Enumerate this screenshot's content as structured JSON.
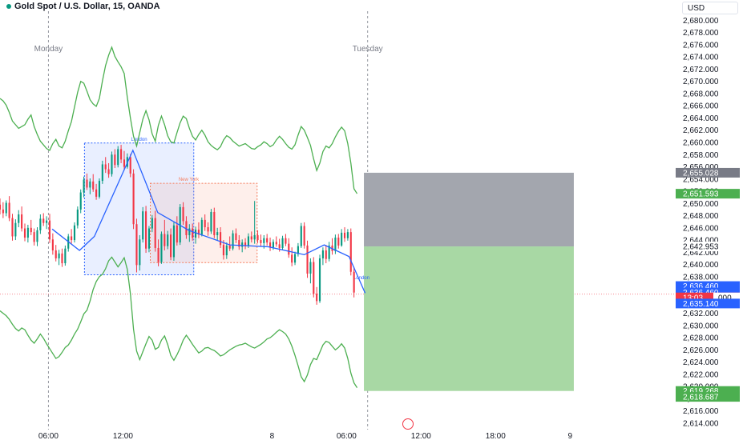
{
  "title": "Gold Spot / U.S. Dollar, 15, OANDA",
  "currency": "USD",
  "colors": {
    "up": "#089981",
    "down": "#f23645",
    "band": "#4caf50",
    "ma": "#2962ff",
    "london_box": "#2962ff",
    "ny_box": "#f57c5c",
    "stop_zone": "#a3a6ae",
    "target_zone": "#a8d8a4"
  },
  "icons": {
    "replay": "replay-icon"
  },
  "chart_data": {
    "type": "candlestick",
    "title": "Gold Spot / U.S. Dollar, 15, OANDA",
    "ylim": [
      2613.2,
      2681.5
    ],
    "y_ticks": [
      "2,614.000",
      "2,616.000",
      "2,618.000",
      "2,620.000",
      "2,622.000",
      "2,624.000",
      "2,626.000",
      "2,628.000",
      "2,630.000",
      "2,632.000",
      "2,634.000",
      "2,636.000",
      "2,638.000",
      "2,640.000",
      "2,642.000",
      "2,644.000",
      "2,646.000",
      "2,648.000",
      "2,650.000",
      "2,652.000",
      "2,654.000",
      "2,656.000",
      "2,658.000",
      "2,660.000",
      "2,662.000",
      "2,664.000",
      "2,666.000",
      "2,668.000",
      "2,670.000",
      "2,672.000",
      "2,674.000",
      "2,676.000",
      "2,678.000",
      "2,680.000"
    ],
    "x_ticks": [
      {
        "label": "06:00",
        "t": 6
      },
      {
        "label": "12:00",
        "t": 12
      },
      {
        "label": "8",
        "t": 24
      },
      {
        "label": "06:00",
        "t": 30
      },
      {
        "label": "12:00",
        "t": 36
      },
      {
        "label": "18:00",
        "t": 42
      },
      {
        "label": "9",
        "t": 48
      }
    ],
    "x_range_hours": [
      2.1,
      56.5
    ],
    "day_labels": [
      {
        "label": "Monday",
        "t": 2.1
      },
      {
        "label": "Tuesday",
        "t": 27.8
      }
    ],
    "sessions": [
      {
        "label": "London",
        "t_start": 8.9,
        "t_end": 17.7,
        "high": 2659.9,
        "low": 2638.3
      },
      {
        "label": "New York",
        "t_start": 14.2,
        "t_end": 22.8,
        "high": 2653.3,
        "low": 2640.3
      }
    ],
    "session_label_last": {
      "label": "London",
      "t": 31.2,
      "price": 2637.6
    },
    "price_tags": [
      {
        "label": "2,655.028",
        "price": 2655.028,
        "color": "#787b86"
      },
      {
        "label": "2,651.593",
        "price": 2651.593,
        "color": "#4caf50"
      },
      {
        "label": "2,636.460",
        "price": 2636.46,
        "color": "#2962ff"
      },
      {
        "label": "2,636.460",
        "price": 2635.4,
        "color": "#2962ff"
      },
      {
        "label": "13:03",
        "price": 2634.6,
        "color": "#f23645",
        "extra": "000"
      },
      {
        "label": "2,635.140",
        "price": 2633.6,
        "color": "#2962ff"
      },
      {
        "label": "2,619.268",
        "price": 2619.268,
        "color": "#4caf50"
      },
      {
        "label": "2,618.687",
        "price": 2618.3,
        "color": "#4caf50"
      }
    ],
    "plain_tags": [
      {
        "label": "2,642.953",
        "price": 2642.953
      }
    ],
    "position": {
      "t_start": 31.4,
      "t_end": 48.3,
      "entry": 2642.953,
      "stop": 2655.028,
      "target": 2619.268
    },
    "ohlc": [
      [
        2649.8,
        2650.8,
        2648.2,
        2649.0
      ],
      [
        2649.0,
        2650.2,
        2647.6,
        2648.4
      ],
      [
        2648.4,
        2650.5,
        2647.9,
        2650.1
      ],
      [
        2650.1,
        2651.2,
        2647.1,
        2647.6
      ],
      [
        2647.6,
        2648.3,
        2643.9,
        2644.6
      ],
      [
        2644.6,
        2647.4,
        2644.0,
        2646.8
      ],
      [
        2646.8,
        2648.9,
        2646.1,
        2648.2
      ],
      [
        2648.2,
        2649.5,
        2645.4,
        2645.9
      ],
      [
        2645.9,
        2646.7,
        2643.8,
        2644.4
      ],
      [
        2644.4,
        2646.5,
        2643.6,
        2646.0
      ],
      [
        2646.0,
        2647.3,
        2644.8,
        2645.3
      ],
      [
        2645.3,
        2645.9,
        2643.1,
        2643.7
      ],
      [
        2643.7,
        2646.1,
        2643.0,
        2645.6
      ],
      [
        2645.6,
        2648.2,
        2645.0,
        2647.5
      ],
      [
        2647.5,
        2648.4,
        2646.3,
        2646.8
      ],
      [
        2646.8,
        2647.9,
        2645.8,
        2647.2
      ],
      [
        2647.2,
        2648.3,
        2643.5,
        2644.1
      ],
      [
        2644.1,
        2645.1,
        2641.6,
        2642.3
      ],
      [
        2642.3,
        2643.2,
        2640.5,
        2641.0
      ],
      [
        2641.0,
        2642.4,
        2639.9,
        2641.8
      ],
      [
        2641.8,
        2642.6,
        2639.6,
        2640.2
      ],
      [
        2640.2,
        2643.1,
        2639.8,
        2642.6
      ],
      [
        2642.6,
        2645.0,
        2642.1,
        2644.6
      ],
      [
        2644.6,
        2645.8,
        2643.4,
        2644.0
      ],
      [
        2644.0,
        2646.9,
        2643.6,
        2646.4
      ],
      [
        2646.4,
        2649.5,
        2645.9,
        2649.0
      ],
      [
        2649.0,
        2652.3,
        2648.4,
        2651.8
      ],
      [
        2651.8,
        2654.4,
        2651.0,
        2653.9
      ],
      [
        2653.9,
        2654.9,
        2652.2,
        2652.6
      ],
      [
        2652.6,
        2654.1,
        2651.5,
        2653.6
      ],
      [
        2653.6,
        2654.8,
        2651.9,
        2652.3
      ],
      [
        2652.3,
        2653.2,
        2650.6,
        2651.1
      ],
      [
        2651.1,
        2654.1,
        2650.8,
        2653.7
      ],
      [
        2653.7,
        2657.0,
        2653.2,
        2656.4
      ],
      [
        2656.4,
        2657.6,
        2655.0,
        2655.6
      ],
      [
        2655.6,
        2656.6,
        2654.2,
        2654.8
      ],
      [
        2654.8,
        2658.5,
        2654.4,
        2658.0
      ],
      [
        2658.0,
        2658.9,
        2655.8,
        2656.3
      ],
      [
        2656.3,
        2659.4,
        2655.9,
        2658.9
      ],
      [
        2658.9,
        2659.6,
        2656.6,
        2657.2
      ],
      [
        2657.2,
        2658.6,
        2655.4,
        2656.0
      ],
      [
        2656.0,
        2658.2,
        2655.7,
        2657.6
      ],
      [
        2657.6,
        2658.1,
        2654.3,
        2654.9
      ],
      [
        2654.9,
        2655.6,
        2645.8,
        2646.6
      ],
      [
        2646.6,
        2647.5,
        2638.7,
        2639.9
      ],
      [
        2639.9,
        2644.8,
        2639.0,
        2644.1
      ],
      [
        2644.1,
        2649.4,
        2643.6,
        2648.7
      ],
      [
        2648.7,
        2649.6,
        2641.9,
        2642.6
      ],
      [
        2642.6,
        2646.3,
        2642.0,
        2645.9
      ],
      [
        2645.9,
        2648.1,
        2645.3,
        2647.6
      ],
      [
        2647.6,
        2648.8,
        2642.1,
        2642.7
      ],
      [
        2642.7,
        2644.1,
        2639.7,
        2640.4
      ],
      [
        2640.4,
        2645.4,
        2640.1,
        2645.0
      ],
      [
        2645.0,
        2647.3,
        2642.3,
        2643.0
      ],
      [
        2643.0,
        2645.5,
        2642.5,
        2644.9
      ],
      [
        2644.9,
        2645.9,
        2640.7,
        2641.2
      ],
      [
        2641.2,
        2646.9,
        2640.6,
        2646.4
      ],
      [
        2646.4,
        2647.9,
        2643.1,
        2643.6
      ],
      [
        2643.6,
        2649.9,
        2643.2,
        2649.4
      ],
      [
        2649.4,
        2650.2,
        2646.5,
        2647.1
      ],
      [
        2647.1,
        2647.9,
        2644.2,
        2644.8
      ],
      [
        2644.8,
        2646.6,
        2643.7,
        2645.9
      ],
      [
        2645.9,
        2646.7,
        2643.9,
        2644.4
      ],
      [
        2644.4,
        2646.2,
        2643.4,
        2645.7
      ],
      [
        2645.7,
        2646.9,
        2644.3,
        2644.9
      ],
      [
        2644.9,
        2647.7,
        2644.6,
        2647.3
      ],
      [
        2647.3,
        2648.2,
        2645.5,
        2646.1
      ],
      [
        2646.1,
        2646.9,
        2644.7,
        2645.4
      ],
      [
        2645.4,
        2649.1,
        2645.0,
        2648.6
      ],
      [
        2648.6,
        2649.3,
        2644.3,
        2644.8
      ],
      [
        2644.8,
        2646.0,
        2643.9,
        2645.3
      ],
      [
        2645.3,
        2646.1,
        2642.7,
        2643.2
      ],
      [
        2643.2,
        2644.0,
        2640.8,
        2641.5
      ],
      [
        2641.5,
        2643.6,
        2640.9,
        2643.1
      ],
      [
        2643.1,
        2644.6,
        2642.2,
        2642.6
      ],
      [
        2642.6,
        2645.6,
        2642.3,
        2645.1
      ],
      [
        2645.1,
        2645.9,
        2643.5,
        2644.0
      ],
      [
        2644.0,
        2644.8,
        2642.4,
        2642.9
      ],
      [
        2642.9,
        2644.1,
        2642.0,
        2643.6
      ],
      [
        2643.6,
        2644.3,
        2642.5,
        2643.0
      ],
      [
        2643.0,
        2645.1,
        2642.7,
        2644.6
      ],
      [
        2644.6,
        2645.4,
        2643.6,
        2644.1
      ],
      [
        2644.1,
        2650.4,
        2643.4,
        2644.8
      ],
      [
        2644.8,
        2645.6,
        2643.5,
        2644.0
      ],
      [
        2644.0,
        2644.9,
        2642.9,
        2643.5
      ],
      [
        2643.5,
        2644.8,
        2642.6,
        2644.3
      ],
      [
        2644.3,
        2645.0,
        2643.1,
        2643.6
      ],
      [
        2643.6,
        2644.4,
        2642.2,
        2642.8
      ],
      [
        2642.8,
        2644.1,
        2642.4,
        2643.7
      ],
      [
        2643.7,
        2644.6,
        2642.9,
        2643.3
      ],
      [
        2643.3,
        2644.2,
        2642.1,
        2642.7
      ],
      [
        2642.7,
        2644.7,
        2642.3,
        2644.3
      ],
      [
        2644.3,
        2645.0,
        2643.0,
        2643.4
      ],
      [
        2643.4,
        2644.3,
        2641.1,
        2641.6
      ],
      [
        2641.6,
        2642.8,
        2639.7,
        2640.3
      ],
      [
        2640.3,
        2642.1,
        2639.9,
        2641.7
      ],
      [
        2641.7,
        2643.5,
        2641.3,
        2643.0
      ],
      [
        2643.0,
        2646.8,
        2642.7,
        2646.3
      ],
      [
        2646.3,
        2646.9,
        2642.6,
        2643.1
      ],
      [
        2643.1,
        2643.9,
        2637.8,
        2638.5
      ],
      [
        2638.5,
        2641.0,
        2636.9,
        2640.4
      ],
      [
        2640.4,
        2641.2,
        2634.6,
        2635.2
      ],
      [
        2635.2,
        2636.3,
        2633.4,
        2634.0
      ],
      [
        2634.0,
        2641.6,
        2633.7,
        2641.0
      ],
      [
        2641.0,
        2642.8,
        2639.9,
        2642.3
      ],
      [
        2642.3,
        2643.2,
        2640.2,
        2640.9
      ],
      [
        2640.9,
        2643.7,
        2640.5,
        2643.1
      ],
      [
        2643.1,
        2644.3,
        2641.6,
        2642.2
      ],
      [
        2642.2,
        2644.9,
        2641.7,
        2644.4
      ],
      [
        2644.4,
        2645.0,
        2642.6,
        2643.1
      ],
      [
        2643.1,
        2645.8,
        2642.9,
        2645.2
      ],
      [
        2645.2,
        2646.1,
        2643.7,
        2644.3
      ],
      [
        2644.3,
        2645.8,
        2643.9,
        2645.3
      ],
      [
        2645.3,
        2645.9,
        2638.2,
        2638.8
      ],
      [
        2638.8,
        2639.6,
        2634.6,
        2635.4
      ]
    ],
    "bands": {
      "upper": [
        2667.2,
        2666.8,
        2666.1,
        2664.9,
        2663.5,
        2662.9,
        2662.3,
        2662.6,
        2662.9,
        2663.8,
        2664.5,
        2662.6,
        2661.3,
        2660.2,
        2659.6,
        2659.0,
        2658.7,
        2659.8,
        2660.5,
        2659.4,
        2659.1,
        2660.2,
        2661.9,
        2663.4,
        2665.8,
        2668.2,
        2670.0,
        2669.7,
        2668.4,
        2667.0,
        2666.3,
        2665.9,
        2667.2,
        2670.1,
        2672.6,
        2674.3,
        2675.6,
        2674.1,
        2673.2,
        2672.4,
        2671.3,
        2667.4,
        2664.0,
        2661.0,
        2659.4,
        2661.6,
        2663.8,
        2665.2,
        2663.7,
        2661.4,
        2660.2,
        2662.8,
        2664.3,
        2662.9,
        2661.1,
        2660.1,
        2659.9,
        2661.6,
        2663.2,
        2664.3,
        2663.9,
        2662.3,
        2661.0,
        2660.4,
        2661.3,
        2662.0,
        2661.2,
        2660.1,
        2659.5,
        2659.1,
        2658.8,
        2659.3,
        2660.4,
        2661.1,
        2660.8,
        2660.2,
        2659.8,
        2659.4,
        2659.6,
        2659.8,
        2659.4,
        2659.0,
        2658.9,
        2659.3,
        2659.6,
        2660.1,
        2659.8,
        2659.3,
        2659.6,
        2660.4,
        2661.0,
        2660.5,
        2659.8,
        2659.2,
        2658.9,
        2659.6,
        2661.2,
        2662.6,
        2662.0,
        2660.8,
        2659.5,
        2657.3,
        2655.4,
        2656.6,
        2658.5,
        2659.4,
        2659.1,
        2659.8,
        2660.9,
        2661.8,
        2662.5,
        2661.9,
        2659.8,
        2656.6,
        2652.4,
        2651.6
      ],
      "lower": [
        2632.4,
        2632.0,
        2631.6,
        2631.0,
        2630.2,
        2629.5,
        2629.1,
        2629.6,
        2629.3,
        2628.4,
        2627.6,
        2627.1,
        2627.8,
        2628.6,
        2627.9,
        2627.0,
        2626.2,
        2625.4,
        2624.6,
        2624.9,
        2625.6,
        2626.4,
        2626.8,
        2627.6,
        2628.6,
        2629.4,
        2630.6,
        2631.9,
        2632.5,
        2634.0,
        2635.9,
        2637.2,
        2638.0,
        2638.4,
        2639.3,
        2640.6,
        2641.2,
        2640.4,
        2639.6,
        2640.3,
        2641.1,
        2639.2,
        2635.2,
        2629.4,
        2625.8,
        2624.4,
        2625.7,
        2627.0,
        2628.2,
        2627.6,
        2626.1,
        2626.4,
        2627.6,
        2628.3,
        2626.9,
        2625.1,
        2624.3,
        2625.2,
        2626.3,
        2627.6,
        2628.4,
        2627.7,
        2626.9,
        2626.2,
        2625.5,
        2625.8,
        2626.3,
        2626.4,
        2626.1,
        2625.9,
        2625.5,
        2625.0,
        2625.2,
        2625.6,
        2626.0,
        2626.3,
        2626.6,
        2626.8,
        2626.9,
        2627.1,
        2626.8,
        2626.5,
        2626.3,
        2626.6,
        2626.9,
        2627.3,
        2627.8,
        2628.0,
        2628.4,
        2628.9,
        2629.3,
        2629.0,
        2628.6,
        2627.8,
        2626.6,
        2625.1,
        2623.4,
        2621.6,
        2620.8,
        2621.9,
        2623.6,
        2624.6,
        2624.4,
        2625.6,
        2626.8,
        2627.4,
        2627.2,
        2626.6,
        2626.0,
        2626.4,
        2627.0,
        2626.3,
        2624.6,
        2622.2,
        2620.6,
        2619.8
      ],
      "ma": [
        2649.6,
        2649.3,
        2649.0,
        2648.5,
        2647.7,
        2647.1,
        2646.8,
        2646.4,
        2646.1,
        2645.8,
        2645.4,
        2645.0,
        2644.5,
        2644.4,
        2644.1,
        2643.9,
        2643.6,
        2643.1,
        2642.6,
        2642.2,
        2641.8,
        2641.5,
        2642.0,
        2642.4,
        2642.8,
        2643.3,
        2644.0,
        2644.6,
        2645.3,
        2646.0,
        2646.6,
        2647.2,
        2648.0,
        2648.9,
        2649.8,
        2650.8,
        2651.6,
        2652.6,
        2653.6,
        2654.6,
        2655.6,
        2656.7,
        2657.6,
        2655.6,
        2653.5,
        2651.4,
        2649.5,
        2648.0,
        2647.0,
        2646.4,
        2646.0,
        2645.7,
        2645.5,
        2645.3,
        2645.1,
        2645.0,
        2644.9,
        2645.0,
        2645.2,
        2645.3,
        2645.3,
        2645.2,
        2645.0,
        2644.9,
        2644.8,
        2644.8,
        2644.8,
        2644.7,
        2644.7,
        2644.6,
        2644.5,
        2644.3,
        2644.1,
        2643.9,
        2643.8,
        2643.8,
        2643.7,
        2643.6,
        2643.5,
        2643.4,
        2643.3,
        2643.3,
        2643.2,
        2643.1,
        2643.1,
        2643.1,
        2643.1,
        2643.0,
        2643.0,
        2643.0,
        2642.9,
        2642.9,
        2642.8,
        2642.7,
        2642.6,
        2642.4,
        2642.2,
        2642.0,
        2641.8,
        2641.6,
        2641.5,
        2641.4,
        2641.4,
        2641.5,
        2641.6,
        2641.7,
        2641.8,
        2642.0,
        2642.1,
        2642.2,
        2642.3,
        2642.5,
        2642.4,
        2642.4,
        2642.1,
        2640.0,
        2636.4
      ]
    },
    "zigzag": [
      {
        "t": 10.3,
        "price": 2644.6
      },
      {
        "t": 10.9,
        "price": 2650.9
      },
      {
        "t": 12.8,
        "price": 2658.7
      },
      {
        "t": 13.2,
        "price": 2655.7
      },
      {
        "t": 14.8,
        "price": 2658.6
      }
    ],
    "zigzag_ext": [
      {
        "t": 6.3,
        "price": 2645.8
      },
      {
        "t": 8.5,
        "price": 2642.3
      },
      {
        "t": 9.7,
        "price": 2644.6
      },
      {
        "t": 12.8,
        "price": 2658.7
      },
      {
        "t": 14.8,
        "price": 2648.5
      },
      {
        "t": 17.3,
        "price": 2645.6
      },
      {
        "t": 20.6,
        "price": 2643.2
      },
      {
        "t": 23.7,
        "price": 2642.9
      },
      {
        "t": 26.6,
        "price": 2641.6
      },
      {
        "t": 28.2,
        "price": 2643.2
      },
      {
        "t": 30.2,
        "price": 2641.3
      },
      {
        "t": 31.5,
        "price": 2635.3
      }
    ]
  }
}
